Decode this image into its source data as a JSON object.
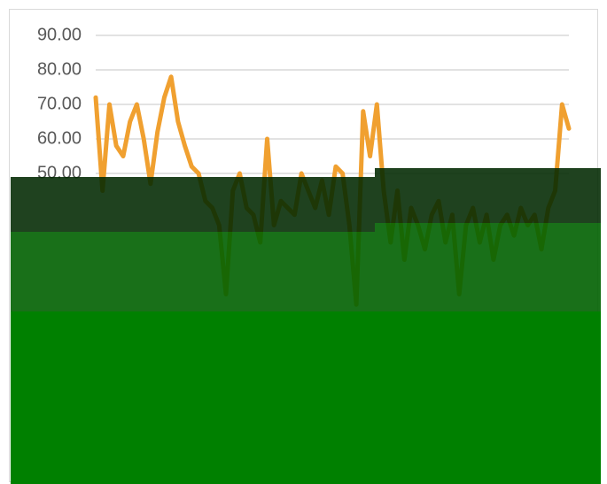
{
  "chart_data": {
    "type": "line",
    "categories": [
      null,
      null,
      null,
      null,
      null,
      null,
      null,
      null,
      null,
      null,
      null,
      null,
      null,
      null,
      null,
      null,
      null,
      null,
      null,
      null,
      null,
      null,
      null,
      null,
      null,
      null,
      null,
      null,
      null,
      null,
      null,
      null,
      null,
      null,
      null,
      null,
      null,
      null,
      null,
      null,
      null,
      null,
      null,
      null,
      null,
      null,
      null,
      null,
      null,
      null,
      null,
      null,
      null,
      null,
      null,
      null,
      null,
      null,
      null,
      null,
      null,
      null,
      null,
      null,
      null,
      null,
      null,
      null,
      null,
      null
    ],
    "values": [
      72,
      45,
      70,
      58,
      55,
      65,
      70,
      60,
      47,
      62,
      72,
      78,
      65,
      58,
      52,
      50,
      42,
      40,
      35,
      15,
      45,
      50,
      40,
      38,
      30,
      60,
      35,
      42,
      40,
      38,
      50,
      45,
      40,
      48,
      38,
      52,
      50,
      35,
      12,
      68,
      55,
      70,
      45,
      30,
      45,
      25,
      40,
      35,
      28,
      38,
      42,
      30,
      38,
      15,
      35,
      40,
      30,
      38,
      25,
      35,
      38,
      32,
      40,
      35,
      38,
      28,
      40,
      45,
      70,
      63
    ],
    "color": "#f0a030",
    "ylim": [
      0,
      90
    ],
    "yticks": [
      {
        "value": 50,
        "label": "50.00"
      },
      {
        "value": 60,
        "label": "60.00"
      },
      {
        "value": 70,
        "label": "70.00"
      },
      {
        "value": 80,
        "label": "80.00"
      },
      {
        "value": 90,
        "label": "90.00"
      }
    ],
    "grid": true
  }
}
